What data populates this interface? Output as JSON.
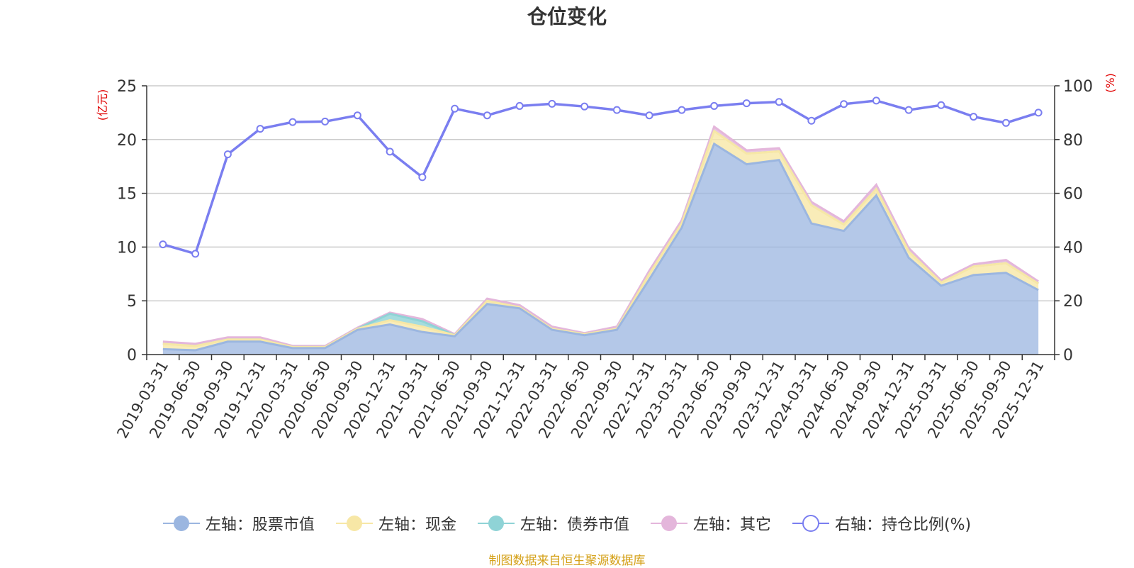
{
  "title": "仓位变化",
  "source_note": "制图数据来自恒生聚源数据库",
  "colors": {
    "stock": "#9bb6e0",
    "cash": "#f7e7a6",
    "bond": "#8fd3d6",
    "other": "#e4b6db",
    "ratio": "#7a7ef0"
  },
  "legend": [
    {
      "label": "左轴：股票市值",
      "key": "stock",
      "icon": "filled-circle-icon"
    },
    {
      "label": "左轴：现金",
      "key": "cash",
      "icon": "filled-circle-icon"
    },
    {
      "label": "左轴：债券市值",
      "key": "bond",
      "icon": "filled-circle-icon"
    },
    {
      "label": "左轴：其它",
      "key": "other",
      "icon": "filled-circle-icon"
    },
    {
      "label": "右轴：持仓比例(%)",
      "key": "ratio",
      "icon": "hollow-circle-icon"
    }
  ],
  "chart_data": {
    "type": "area",
    "title": "仓位变化",
    "y_left_label": "(亿元)",
    "y_right_label": "(%)",
    "y_left_range": [
      0,
      25
    ],
    "y_left_ticks": [
      0,
      5,
      10,
      15,
      20,
      25
    ],
    "y_right_range": [
      0,
      100
    ],
    "y_right_ticks": [
      0,
      20,
      40,
      60,
      80,
      100
    ],
    "grid": true,
    "legend_position": "bottom",
    "categories": [
      "2019-03-31",
      "2019-06-30",
      "2019-09-30",
      "2019-12-31",
      "2020-03-31",
      "2020-06-30",
      "2020-09-30",
      "2020-12-31",
      "2021-03-31",
      "2021-06-30",
      "2021-09-30",
      "2021-12-31",
      "2022-03-31",
      "2022-06-30",
      "2022-09-30",
      "2022-12-31",
      "2023-03-31",
      "2023-06-30",
      "2023-09-30",
      "2023-12-31",
      "2024-03-31",
      "2024-06-30",
      "2024-09-30",
      "2024-12-31",
      "2025-03-31",
      "2025-06-30",
      "2025-09-30",
      "2025-12-31"
    ],
    "series": [
      {
        "name": "左轴：股票市值",
        "stack": true,
        "values": [
          0.5,
          0.4,
          1.2,
          1.2,
          0.6,
          0.6,
          2.3,
          2.8,
          2.1,
          1.7,
          4.7,
          4.3,
          2.3,
          1.8,
          2.3,
          7.0,
          11.8,
          19.6,
          17.7,
          18.1,
          12.2,
          11.5,
          14.8,
          9.0,
          6.4,
          7.4,
          7.6,
          6.0
        ]
      },
      {
        "name": "左轴：现金",
        "stack": true,
        "values": [
          0.5,
          0.4,
          0.2,
          0.2,
          0.1,
          0.1,
          0.1,
          0.4,
          0.5,
          0.1,
          0.3,
          0.1,
          0.1,
          0.1,
          0.1,
          0.5,
          0.4,
          1.2,
          1.0,
          0.8,
          1.7,
          0.6,
          0.6,
          0.6,
          0.3,
          0.8,
          0.9,
          0.6
        ]
      },
      {
        "name": "左轴：债券市值",
        "stack": true,
        "values": [
          0,
          0,
          0,
          0,
          0,
          0,
          0,
          0.6,
          0.5,
          0,
          0,
          0,
          0,
          0,
          0,
          0,
          0,
          0,
          0,
          0,
          0,
          0,
          0,
          0,
          0,
          0,
          0,
          0
        ]
      },
      {
        "name": "左轴：其它",
        "stack": true,
        "values": [
          0.2,
          0.2,
          0.2,
          0.2,
          0.1,
          0.1,
          0.1,
          0.1,
          0.2,
          0.1,
          0.2,
          0.2,
          0.2,
          0.1,
          0.2,
          0.3,
          0.3,
          0.4,
          0.3,
          0.3,
          0.3,
          0.3,
          0.4,
          0.3,
          0.2,
          0.2,
          0.3,
          0.2
        ]
      },
      {
        "name": "右轴：持仓比例(%)",
        "axis": "right",
        "values": [
          41,
          37.5,
          74.5,
          84,
          86.5,
          86.7,
          89,
          75.5,
          66,
          91.5,
          89,
          92.5,
          93.3,
          92.3,
          91,
          89,
          91,
          92.5,
          93.5,
          94,
          87,
          93.2,
          94.5,
          91,
          92.8,
          88.5,
          86.2,
          90
        ]
      }
    ]
  }
}
